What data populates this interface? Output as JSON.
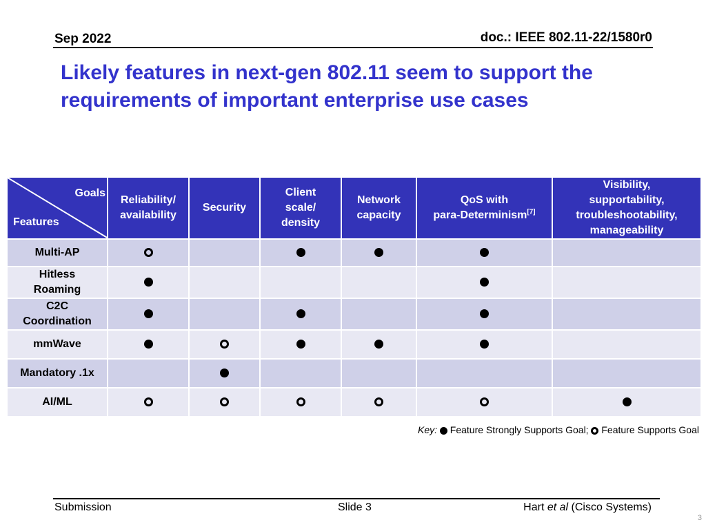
{
  "header": {
    "date": "Sep 2022",
    "doc_id": "doc.: IEEE 802.11-22/1580r0"
  },
  "title": {
    "line1": "Likely features in next-gen 802.11 seem to support the",
    "line2": "requirements of important enterprise use cases"
  },
  "table": {
    "corner": {
      "goals_label": "Goals",
      "features_label": "Features"
    },
    "columns": [
      {
        "line1": "Reliability/",
        "line2": "availability",
        "line3": "",
        "line4": ""
      },
      {
        "line1": "Security",
        "line2": "",
        "line3": "",
        "line4": ""
      },
      {
        "line1": "Client",
        "line2": "scale/",
        "line3": "density",
        "line4": ""
      },
      {
        "line1": "Network",
        "line2": "capacity",
        "line3": "",
        "line4": ""
      },
      {
        "line1": "QoS with",
        "line2": "para-Determinism",
        "sup": "[7]",
        "line3": "",
        "line4": ""
      },
      {
        "line1": "Visibility,",
        "line2": "supportability,",
        "line3": "troubleshootability,",
        "line4": "manageability"
      }
    ],
    "rows": [
      {
        "feature_line1": "Multi-AP",
        "feature_line2": "",
        "cells": [
          "open",
          "",
          "full",
          "full",
          "full",
          ""
        ]
      },
      {
        "feature_line1": "Hitless",
        "feature_line2": "Roaming",
        "cells": [
          "full",
          "",
          "",
          "",
          "full",
          ""
        ]
      },
      {
        "feature_line1": "C2C",
        "feature_line2": "Coordination",
        "cells": [
          "full",
          "",
          "full",
          "",
          "full",
          ""
        ]
      },
      {
        "feature_line1": "mmWave",
        "feature_line2": "",
        "cells": [
          "full",
          "open",
          "full",
          "full",
          "full",
          ""
        ]
      },
      {
        "feature_line1": "Mandatory .1x",
        "feature_line2": "",
        "cells": [
          "",
          "full",
          "",
          "",
          "",
          ""
        ]
      },
      {
        "feature_line1": "AI/ML",
        "feature_line2": "",
        "cells": [
          "open",
          "open",
          "open",
          "open",
          "open",
          "full"
        ]
      }
    ]
  },
  "key": {
    "prefix": "Key:",
    "full_label": "Feature Strongly Supports Goal;",
    "open_label": "Feature Supports Goal"
  },
  "footer": {
    "left": "Submission",
    "center": "Slide 3",
    "right_name": "Hart ",
    "right_italic": "et al",
    "right_org": " (Cisco Systems)",
    "page_number": "3"
  },
  "colors": {
    "title": "#3333cc",
    "header_bg": "#3333b8",
    "row_dark": "#cfd0e8",
    "row_light": "#e8e8f3"
  }
}
